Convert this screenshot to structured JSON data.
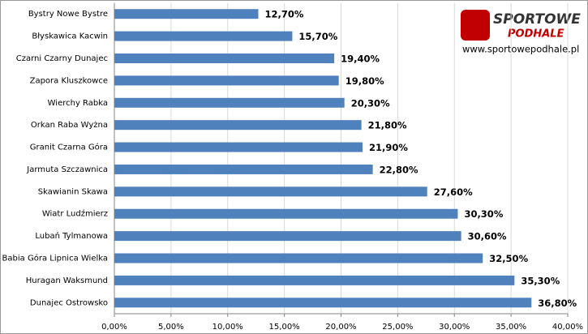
{
  "chart_data": {
    "type": "bar",
    "orientation": "horizontal",
    "categories": [
      "Bystry Nowe Bystre",
      "Błyskawica Kacwin",
      "Czarni Czarny Dunajec",
      "Zapora Kluszkowce",
      "Wierchy Rabka",
      "Orkan Raba Wyżna",
      "Granit Czarna Góra",
      "Jarmuta Szczawnica",
      "Skawianin Skawa",
      "Wiatr Ludźmierz",
      "Lubań Tylmanowa",
      "Babia Góra Lipnica Wielka",
      "Huragan Waksmund",
      "Dunajec Ostrowsko"
    ],
    "values": [
      12.7,
      15.7,
      19.4,
      19.8,
      20.3,
      21.8,
      21.9,
      22.8,
      27.6,
      30.3,
      30.6,
      32.5,
      35.3,
      36.8
    ],
    "value_labels": [
      "12,70%",
      "15,70%",
      "19,40%",
      "19,80%",
      "20,30%",
      "21,80%",
      "21,90%",
      "22,80%",
      "27,60%",
      "30,30%",
      "30,60%",
      "32,50%",
      "35,30%",
      "36,80%"
    ],
    "color": "#4f81bd",
    "xlim": [
      0,
      40
    ],
    "xticks": [
      {
        "value": 0,
        "label": "0,00%"
      },
      {
        "value": 5,
        "label": "5,00%"
      },
      {
        "value": 10,
        "label": "10,00%"
      },
      {
        "value": 15,
        "label": "15,00%"
      },
      {
        "value": 20,
        "label": "20,00%"
      },
      {
        "value": 25,
        "label": "25,00%"
      },
      {
        "value": 30,
        "label": "30,00%"
      },
      {
        "value": 35,
        "label": "35,00%"
      },
      {
        "value": 40,
        "label": "40,00%"
      }
    ],
    "grid": true
  },
  "logo": {
    "line1": "SPORTOWE",
    "line2": "PODHALE",
    "url": "www.sportowepodhale.pl"
  }
}
